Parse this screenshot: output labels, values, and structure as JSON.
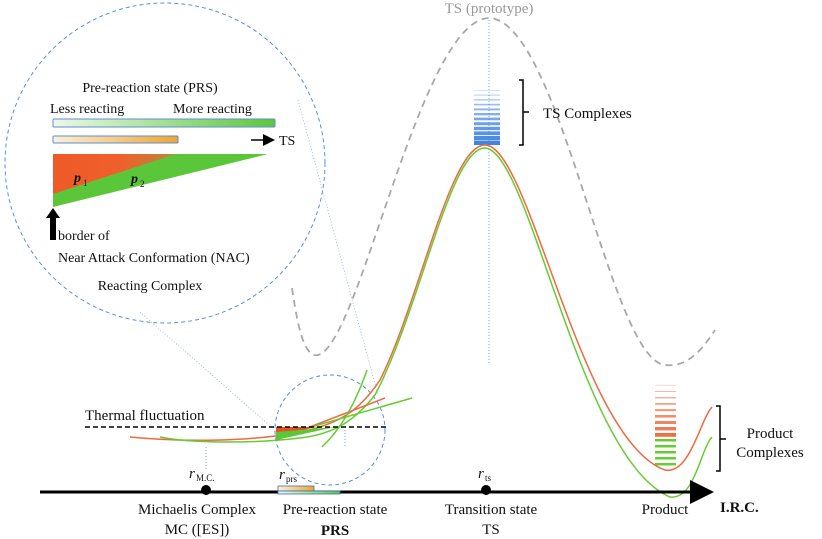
{
  "ts_prototype_label": "TS (prototype)",
  "ts_complexes_label": "TS Complexes",
  "product_complexes_label": [
    "Product",
    "Complexes"
  ],
  "thermal_fluctuation_label": "Thermal fluctuation",
  "axis": {
    "label": "I.R.C.",
    "points": [
      {
        "symbol": "r",
        "subscript": "M.C.",
        "name": [
          "Michaelis Complex",
          "MC ([ES])"
        ]
      },
      {
        "symbol": "r",
        "subscript": "prs",
        "name": [
          "Pre-reaction state",
          "PRS"
        ]
      },
      {
        "symbol": "r",
        "subscript": "ts",
        "name": [
          "Transition state",
          "TS"
        ]
      },
      {
        "name": [
          "Product"
        ]
      }
    ]
  },
  "inset": {
    "title": "Pre-reaction state (PRS)",
    "less_label": "Less reacting",
    "more_label": "More reacting",
    "arrow_label": "TS",
    "p1": "p",
    "p1_sub": "1",
    "p2": "p",
    "p2_sub": "2",
    "border_label": "border of",
    "nac_label": "Near Attack Conformation (NAC)",
    "footer": "Reacting Complex"
  },
  "colors": {
    "orange_curve": "#ee6a3f",
    "green_curve": "#66cc33",
    "prototype_curve": "#a0a0a0",
    "ts_complex": "#3a7fe0",
    "guide": "#5b8fd6"
  }
}
